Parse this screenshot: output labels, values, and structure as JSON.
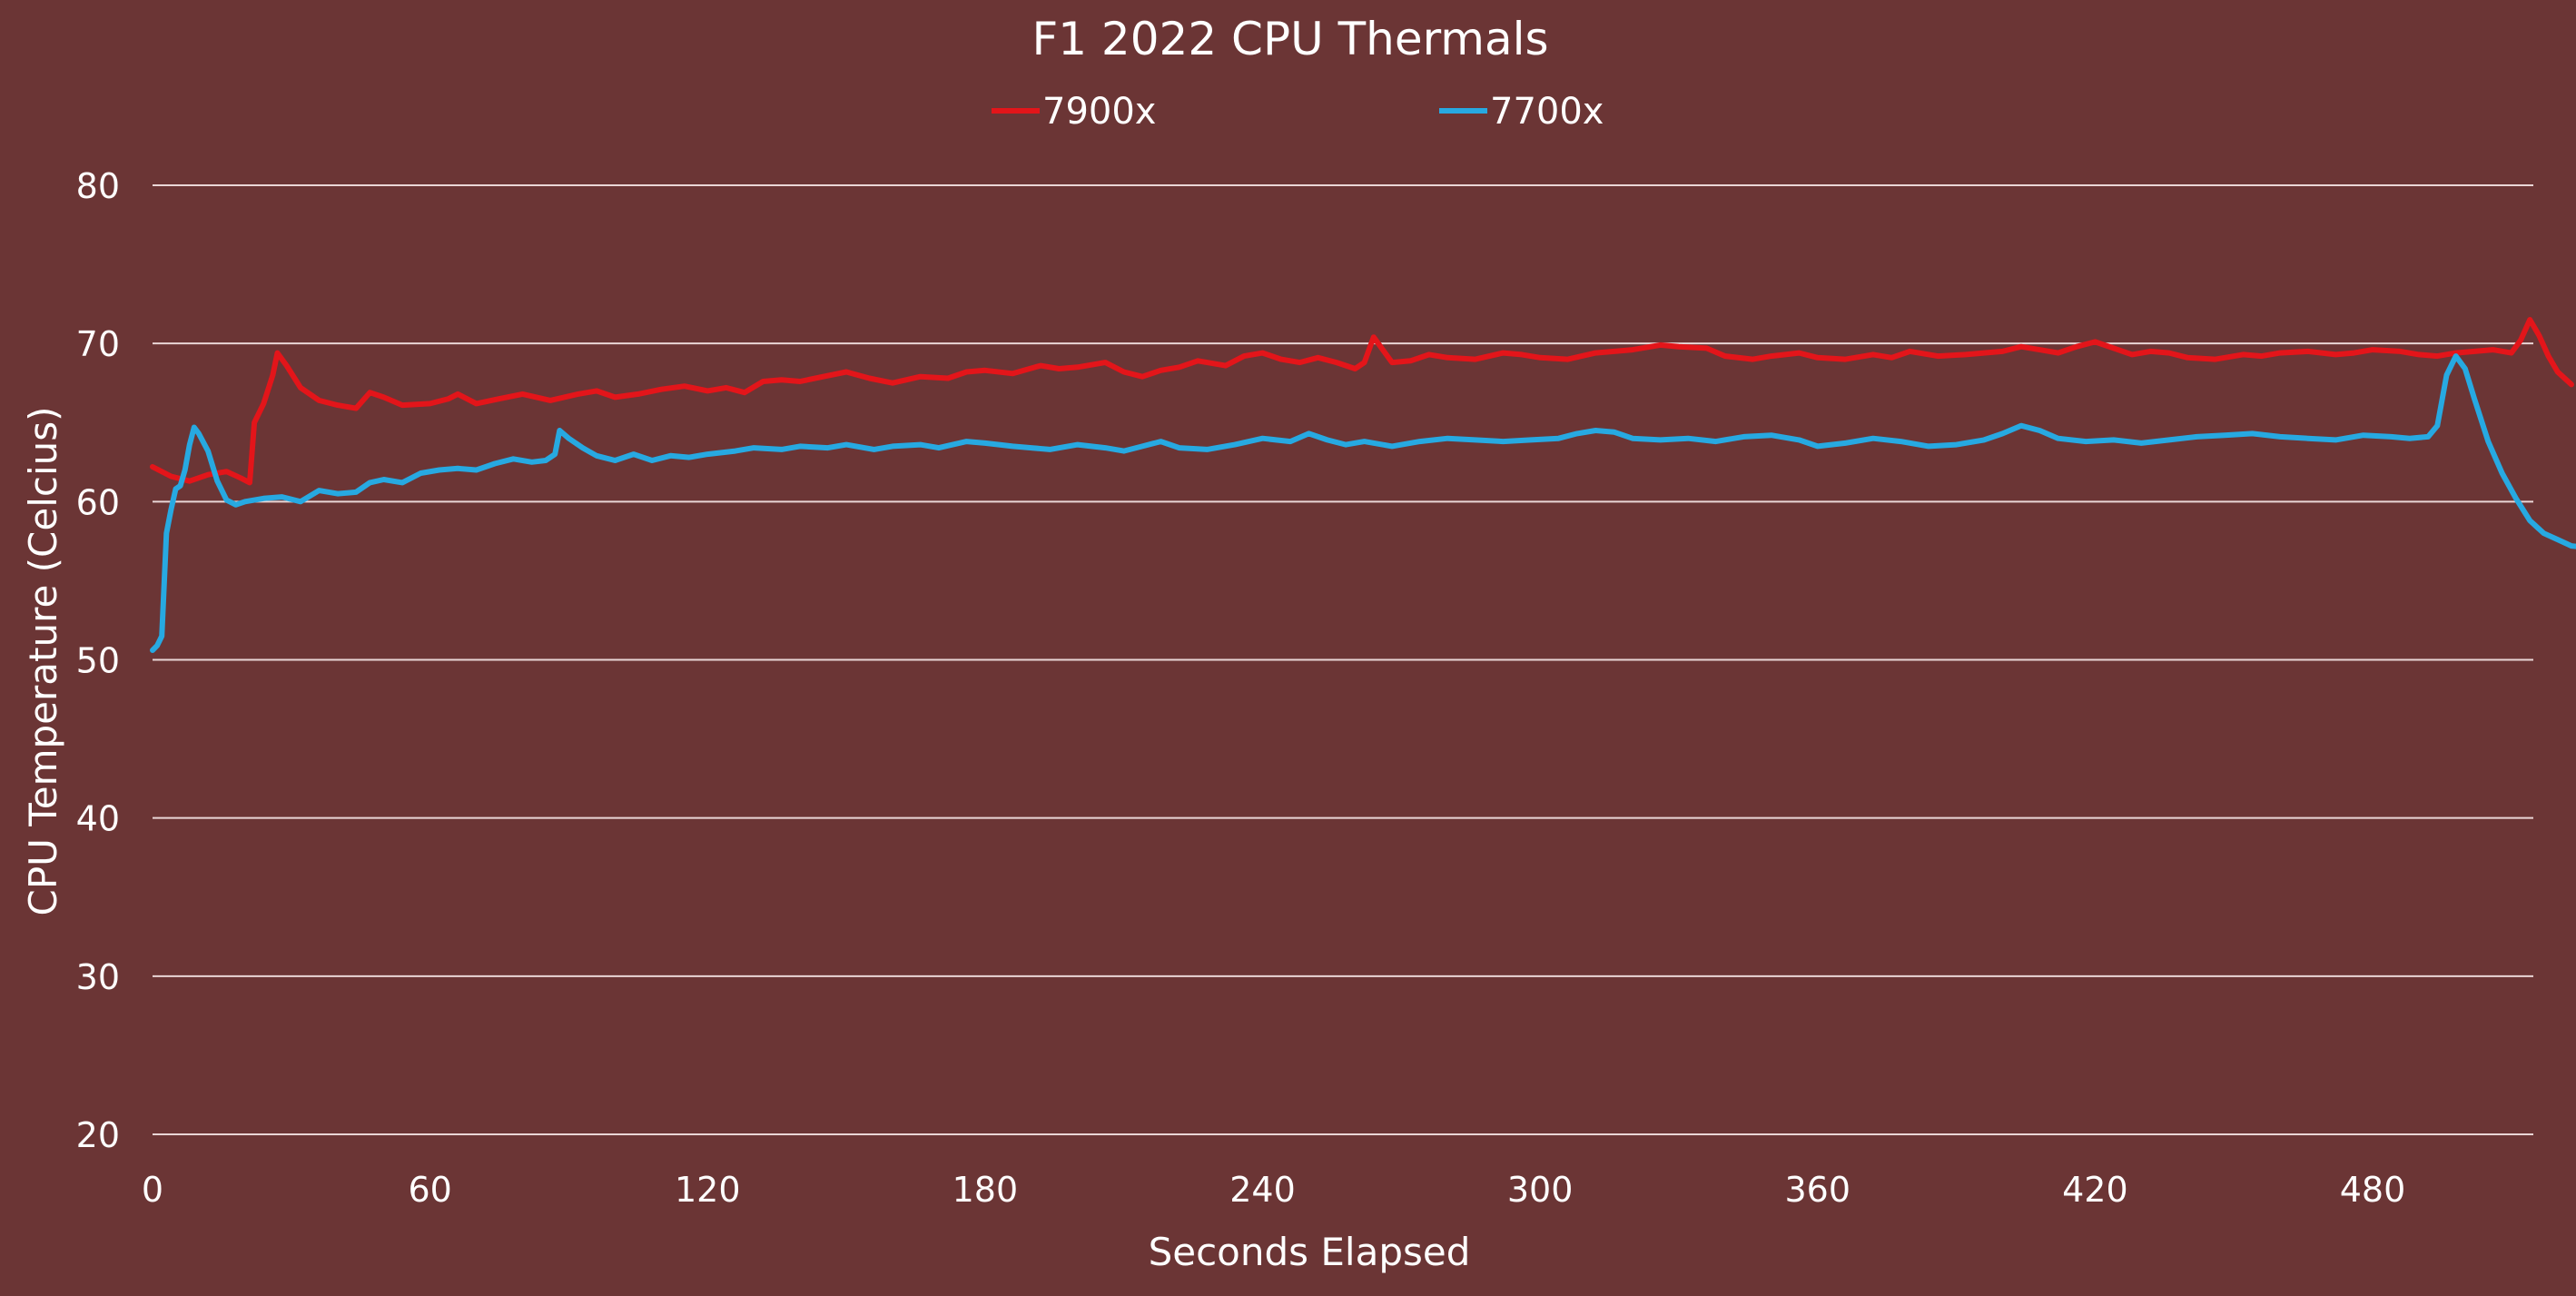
{
  "chart_data": {
    "type": "line",
    "title": "F1 2022 CPU Thermals",
    "xlabel": "Seconds Elapsed",
    "ylabel": "CPU Temperature (Celcius)",
    "xlim": [
      0,
      525
    ],
    "ylim": [
      20,
      80
    ],
    "xticks": [
      "0",
      "60",
      "120",
      "180",
      "240",
      "300",
      "360",
      "420",
      "480"
    ],
    "xtick_values": [
      0,
      60,
      120,
      180,
      240,
      300,
      360,
      420,
      480
    ],
    "yticks": [
      "20",
      "30",
      "40",
      "50",
      "60",
      "70",
      "80"
    ],
    "ytick_values": [
      20,
      30,
      40,
      50,
      60,
      70,
      80
    ],
    "grid": "horizontal",
    "legend_position": "top",
    "series": [
      {
        "name": "7900x",
        "color": "#e3151a",
        "points": [
          [
            0,
            62.2
          ],
          [
            4,
            61.6
          ],
          [
            8,
            61.3
          ],
          [
            12,
            61.7
          ],
          [
            16,
            61.9
          ],
          [
            19,
            61.5
          ],
          [
            21,
            61.2
          ],
          [
            22,
            65.0
          ],
          [
            24,
            66.2
          ],
          [
            26,
            68.0
          ],
          [
            27,
            69.4
          ],
          [
            29,
            68.6
          ],
          [
            32,
            67.2
          ],
          [
            36,
            66.4
          ],
          [
            40,
            66.1
          ],
          [
            44,
            65.9
          ],
          [
            47,
            66.9
          ],
          [
            50,
            66.6
          ],
          [
            54,
            66.1
          ],
          [
            60,
            66.2
          ],
          [
            64,
            66.5
          ],
          [
            66,
            66.8
          ],
          [
            70,
            66.2
          ],
          [
            75,
            66.5
          ],
          [
            80,
            66.8
          ],
          [
            86,
            66.4
          ],
          [
            92,
            66.8
          ],
          [
            96,
            67.0
          ],
          [
            100,
            66.6
          ],
          [
            105,
            66.8
          ],
          [
            110,
            67.1
          ],
          [
            115,
            67.3
          ],
          [
            120,
            67.0
          ],
          [
            124,
            67.2
          ],
          [
            128,
            66.9
          ],
          [
            132,
            67.6
          ],
          [
            136,
            67.7
          ],
          [
            140,
            67.6
          ],
          [
            145,
            67.9
          ],
          [
            150,
            68.2
          ],
          [
            155,
            67.8
          ],
          [
            160,
            67.5
          ],
          [
            166,
            67.9
          ],
          [
            172,
            67.8
          ],
          [
            176,
            68.2
          ],
          [
            180,
            68.3
          ],
          [
            186,
            68.1
          ],
          [
            192,
            68.6
          ],
          [
            196,
            68.4
          ],
          [
            200,
            68.5
          ],
          [
            206,
            68.8
          ],
          [
            210,
            68.2
          ],
          [
            214,
            67.9
          ],
          [
            218,
            68.3
          ],
          [
            222,
            68.5
          ],
          [
            226,
            68.9
          ],
          [
            232,
            68.6
          ],
          [
            236,
            69.2
          ],
          [
            240,
            69.4
          ],
          [
            244,
            69.0
          ],
          [
            248,
            68.8
          ],
          [
            252,
            69.1
          ],
          [
            256,
            68.8
          ],
          [
            260,
            68.4
          ],
          [
            262,
            68.8
          ],
          [
            264,
            70.4
          ],
          [
            266,
            69.6
          ],
          [
            268,
            68.8
          ],
          [
            272,
            68.9
          ],
          [
            276,
            69.3
          ],
          [
            280,
            69.1
          ],
          [
            286,
            69.0
          ],
          [
            292,
            69.4
          ],
          [
            296,
            69.3
          ],
          [
            300,
            69.1
          ],
          [
            306,
            69.0
          ],
          [
            312,
            69.4
          ],
          [
            316,
            69.5
          ],
          [
            320,
            69.6
          ],
          [
            326,
            69.9
          ],
          [
            330,
            69.8
          ],
          [
            336,
            69.7
          ],
          [
            340,
            69.2
          ],
          [
            346,
            69.0
          ],
          [
            350,
            69.2
          ],
          [
            356,
            69.4
          ],
          [
            360,
            69.1
          ],
          [
            366,
            69.0
          ],
          [
            372,
            69.3
          ],
          [
            376,
            69.1
          ],
          [
            380,
            69.5
          ],
          [
            386,
            69.2
          ],
          [
            392,
            69.3
          ],
          [
            396,
            69.4
          ],
          [
            400,
            69.5
          ],
          [
            404,
            69.8
          ],
          [
            408,
            69.6
          ],
          [
            412,
            69.4
          ],
          [
            416,
            69.8
          ],
          [
            420,
            70.1
          ],
          [
            424,
            69.7
          ],
          [
            428,
            69.3
          ],
          [
            432,
            69.5
          ],
          [
            436,
            69.4
          ],
          [
            440,
            69.1
          ],
          [
            446,
            69.0
          ],
          [
            452,
            69.3
          ],
          [
            456,
            69.2
          ],
          [
            460,
            69.4
          ],
          [
            466,
            69.5
          ],
          [
            472,
            69.3
          ],
          [
            476,
            69.4
          ],
          [
            480,
            69.6
          ],
          [
            486,
            69.5
          ],
          [
            490,
            69.3
          ],
          [
            494,
            69.2
          ],
          [
            498,
            69.4
          ],
          [
            502,
            69.5
          ],
          [
            506,
            69.6
          ],
          [
            510,
            69.4
          ],
          [
            512,
            70.2
          ],
          [
            514,
            71.5
          ],
          [
            516,
            70.5
          ],
          [
            518,
            69.2
          ],
          [
            520,
            68.2
          ],
          [
            523,
            67.4
          ]
        ]
      },
      {
        "name": "7700x",
        "color": "#27a9e1",
        "points": [
          [
            0,
            50.6
          ],
          [
            1,
            50.9
          ],
          [
            2,
            51.5
          ],
          [
            3,
            58.0
          ],
          [
            4,
            59.5
          ],
          [
            5,
            60.8
          ],
          [
            6,
            61.0
          ],
          [
            7,
            62.0
          ],
          [
            8,
            63.6
          ],
          [
            9,
            64.7
          ],
          [
            10,
            64.3
          ],
          [
            12,
            63.2
          ],
          [
            14,
            61.3
          ],
          [
            16,
            60.1
          ],
          [
            18,
            59.8
          ],
          [
            20,
            60.0
          ],
          [
            24,
            60.2
          ],
          [
            28,
            60.3
          ],
          [
            32,
            60.0
          ],
          [
            36,
            60.7
          ],
          [
            40,
            60.5
          ],
          [
            44,
            60.6
          ],
          [
            47,
            61.2
          ],
          [
            50,
            61.4
          ],
          [
            54,
            61.2
          ],
          [
            58,
            61.8
          ],
          [
            62,
            62.0
          ],
          [
            66,
            62.1
          ],
          [
            70,
            62.0
          ],
          [
            74,
            62.4
          ],
          [
            78,
            62.7
          ],
          [
            82,
            62.5
          ],
          [
            85,
            62.6
          ],
          [
            87,
            63.0
          ],
          [
            88,
            64.5
          ],
          [
            90,
            64.0
          ],
          [
            93,
            63.4
          ],
          [
            96,
            62.9
          ],
          [
            100,
            62.6
          ],
          [
            104,
            63.0
          ],
          [
            108,
            62.6
          ],
          [
            112,
            62.9
          ],
          [
            116,
            62.8
          ],
          [
            120,
            63.0
          ],
          [
            126,
            63.2
          ],
          [
            130,
            63.4
          ],
          [
            136,
            63.3
          ],
          [
            140,
            63.5
          ],
          [
            146,
            63.4
          ],
          [
            150,
            63.6
          ],
          [
            156,
            63.3
          ],
          [
            160,
            63.5
          ],
          [
            166,
            63.6
          ],
          [
            170,
            63.4
          ],
          [
            176,
            63.8
          ],
          [
            180,
            63.7
          ],
          [
            186,
            63.5
          ],
          [
            190,
            63.4
          ],
          [
            194,
            63.3
          ],
          [
            200,
            63.6
          ],
          [
            206,
            63.4
          ],
          [
            210,
            63.2
          ],
          [
            214,
            63.5
          ],
          [
            218,
            63.8
          ],
          [
            222,
            63.4
          ],
          [
            228,
            63.3
          ],
          [
            234,
            63.6
          ],
          [
            240,
            64.0
          ],
          [
            246,
            63.8
          ],
          [
            250,
            64.3
          ],
          [
            254,
            63.9
          ],
          [
            258,
            63.6
          ],
          [
            262,
            63.8
          ],
          [
            268,
            63.5
          ],
          [
            274,
            63.8
          ],
          [
            280,
            64.0
          ],
          [
            286,
            63.9
          ],
          [
            292,
            63.8
          ],
          [
            298,
            63.9
          ],
          [
            304,
            64.0
          ],
          [
            308,
            64.3
          ],
          [
            312,
            64.5
          ],
          [
            316,
            64.4
          ],
          [
            320,
            64.0
          ],
          [
            326,
            63.9
          ],
          [
            332,
            64.0
          ],
          [
            338,
            63.8
          ],
          [
            344,
            64.1
          ],
          [
            350,
            64.2
          ],
          [
            356,
            63.9
          ],
          [
            360,
            63.5
          ],
          [
            366,
            63.7
          ],
          [
            372,
            64.0
          ],
          [
            378,
            63.8
          ],
          [
            384,
            63.5
          ],
          [
            390,
            63.6
          ],
          [
            396,
            63.9
          ],
          [
            400,
            64.3
          ],
          [
            404,
            64.8
          ],
          [
            408,
            64.5
          ],
          [
            412,
            64.0
          ],
          [
            418,
            63.8
          ],
          [
            424,
            63.9
          ],
          [
            430,
            63.7
          ],
          [
            436,
            63.9
          ],
          [
            442,
            64.1
          ],
          [
            448,
            64.2
          ],
          [
            454,
            64.3
          ],
          [
            460,
            64.1
          ],
          [
            466,
            64.0
          ],
          [
            472,
            63.9
          ],
          [
            478,
            64.2
          ],
          [
            484,
            64.1
          ],
          [
            488,
            64.0
          ],
          [
            492,
            64.1
          ],
          [
            494,
            64.8
          ],
          [
            496,
            68.0
          ],
          [
            498,
            69.2
          ],
          [
            500,
            68.4
          ],
          [
            502,
            66.5
          ],
          [
            505,
            63.8
          ],
          [
            508,
            61.8
          ],
          [
            511,
            60.2
          ],
          [
            514,
            58.8
          ],
          [
            517,
            58.0
          ],
          [
            520,
            57.6
          ],
          [
            523,
            57.2
          ],
          [
            526,
            57.1
          ],
          [
            529,
            56.9
          ],
          [
            531,
            56.6
          ]
        ]
      }
    ]
  }
}
